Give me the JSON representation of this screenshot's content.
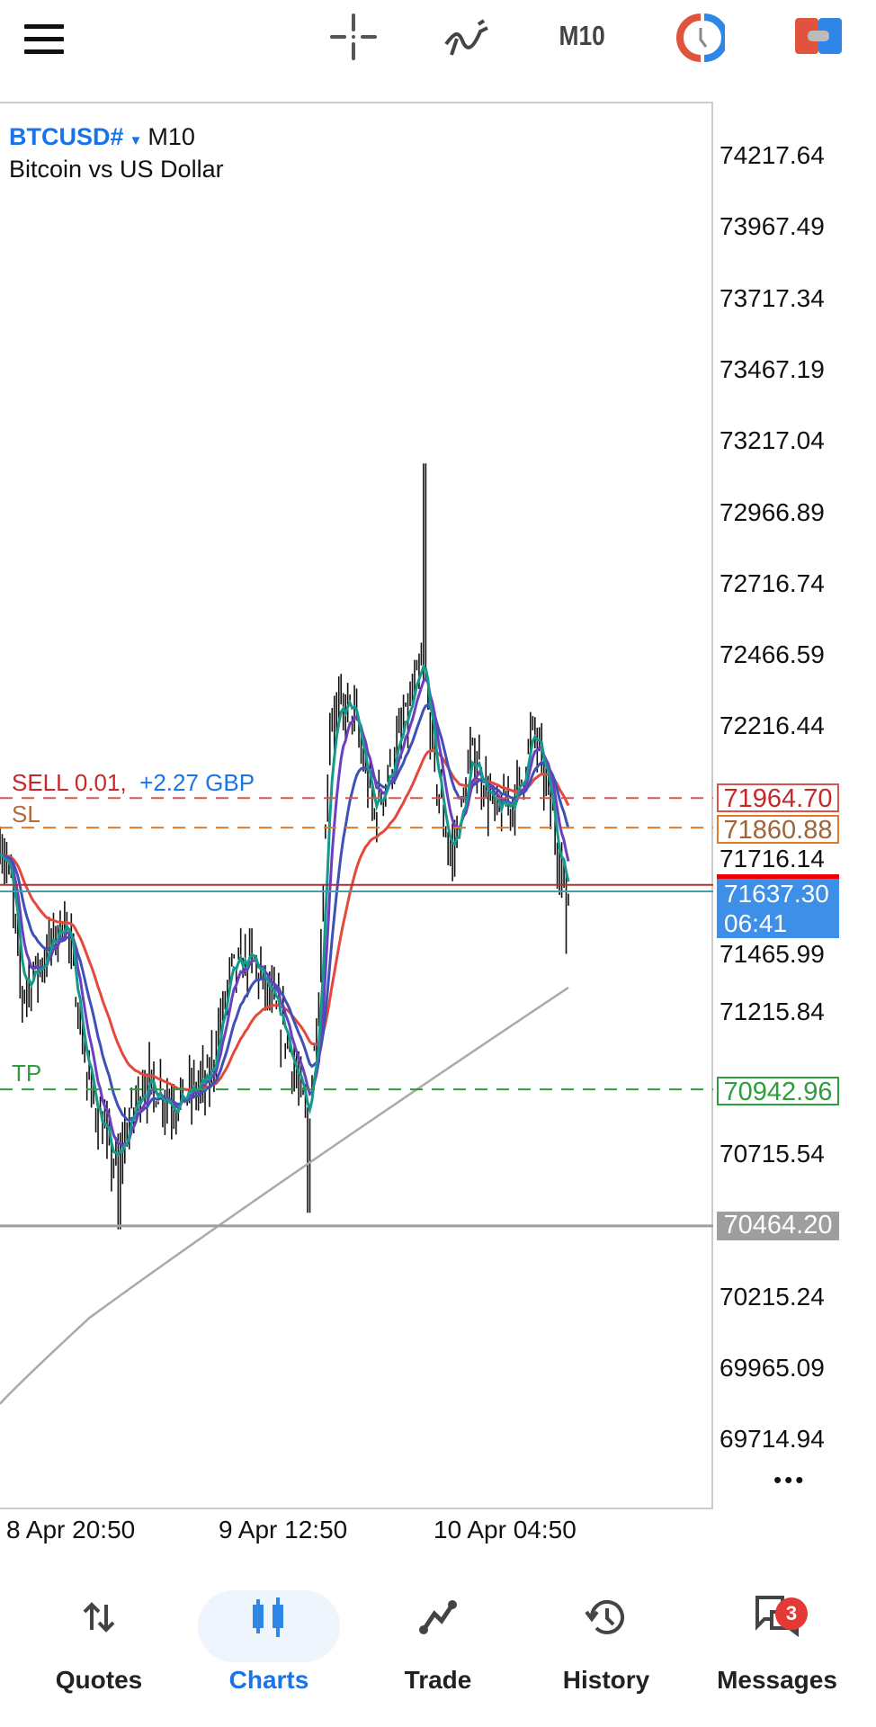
{
  "header": {
    "timeframe": "M10",
    "icons": [
      "menu-icon",
      "crosshair-icon",
      "indicators-icon",
      "clock-icon",
      "trade-toggle-icon"
    ]
  },
  "chart": {
    "symbol": "BTCUSD#",
    "timeframe": "M10",
    "description": "Bitcoin vs US Dollar",
    "price_ticks": [
      "74217.64",
      "73967.49",
      "73717.34",
      "73467.19",
      "73217.04",
      "72966.89",
      "72716.74",
      "72466.59",
      "72216.44",
      "71964.70",
      "71716.14",
      "71465.99",
      "71215.84",
      "70942.96",
      "70715.54",
      "70464.20",
      "70215.24",
      "69965.09",
      "69714.94"
    ],
    "time_ticks": [
      "8 Apr 20:50",
      "9 Apr 12:50",
      "10 Apr 04:50"
    ],
    "position": {
      "label": "SELL 0.01,",
      "profit": "+2.27 GBP",
      "open_price": "71964.70",
      "color": "#c62828",
      "profit_color": "#1a73e8"
    },
    "stop_loss": {
      "label": "SL",
      "price": "71860.88",
      "color": "#e07b27"
    },
    "take_profit": {
      "label": "TP",
      "price": "70942.96",
      "color": "#2e9e3e"
    },
    "current": {
      "price": "71637.30",
      "countdown": "06:41",
      "color": "#3d8fe8"
    },
    "level_line": {
      "price": "70464.20",
      "color": "#9e9e9e"
    },
    "more_label": "•••"
  },
  "nav": {
    "items": [
      {
        "label": "Quotes",
        "icon": "quotes-icon"
      },
      {
        "label": "Charts",
        "icon": "charts-icon",
        "active": true
      },
      {
        "label": "Trade",
        "icon": "trade-icon"
      },
      {
        "label": "History",
        "icon": "history-icon"
      },
      {
        "label": "Messages",
        "icon": "messages-icon",
        "badge": "3"
      }
    ]
  }
}
